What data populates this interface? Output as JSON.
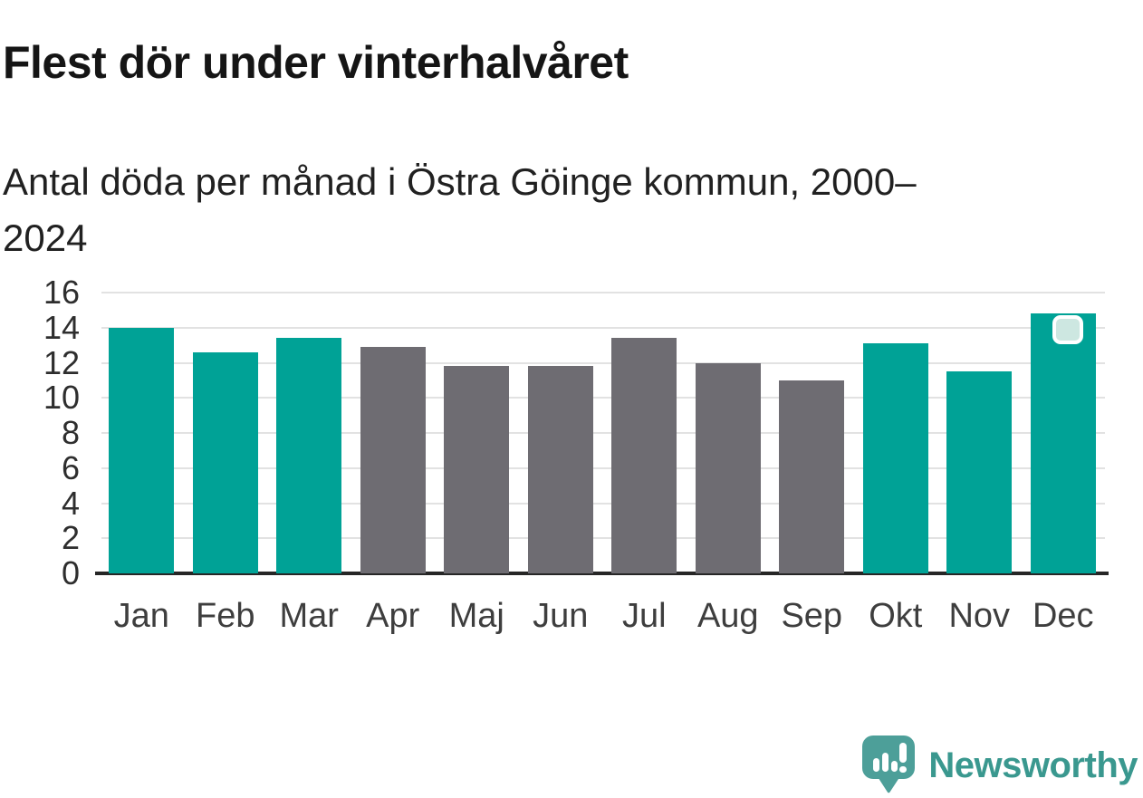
{
  "header": {
    "title": "Flest dör under vinterhalvåret",
    "subtitle": "Antal döda per månad i Östra Göinge kommun, 2000–2024"
  },
  "chart_data": {
    "type": "bar",
    "title": "Flest dör under vinterhalvåret",
    "subtitle": "Antal döda per månad i Östra Göinge kommun, 2000–2024",
    "categories": [
      "Jan",
      "Feb",
      "Mar",
      "Apr",
      "Maj",
      "Jun",
      "Jul",
      "Aug",
      "Sep",
      "Okt",
      "Nov",
      "Dec"
    ],
    "values": [
      14,
      12.6,
      13.4,
      12.9,
      11.8,
      11.8,
      13.4,
      12,
      11,
      13.1,
      11.5,
      14.8
    ],
    "bar_colors": [
      "teal",
      "teal",
      "teal",
      "gray",
      "gray",
      "gray",
      "gray",
      "gray",
      "gray",
      "teal",
      "teal",
      "teal"
    ],
    "palette": {
      "teal": "#00a296",
      "gray": "#6e6c72"
    },
    "color_meaning": "teal = winter half-year months, gray = summer half-year months",
    "xlabel": "",
    "ylabel": "",
    "ylim": [
      0,
      16
    ],
    "yticks": [
      0,
      2,
      4,
      6,
      8,
      10,
      12,
      14,
      16
    ],
    "grid": true,
    "legend": false,
    "highlight": {
      "category": "Dec",
      "shape": "rounded-square-marker",
      "fill": "#cde7e1",
      "border": "#ffffff"
    }
  },
  "branding": {
    "logo_text": "Newsworthy",
    "logo_text_color": "#3a988f",
    "logo_icon": "speech-bubble-with-bar-chart-and-exclamation",
    "logo_icon_color": "#4d9f99"
  }
}
